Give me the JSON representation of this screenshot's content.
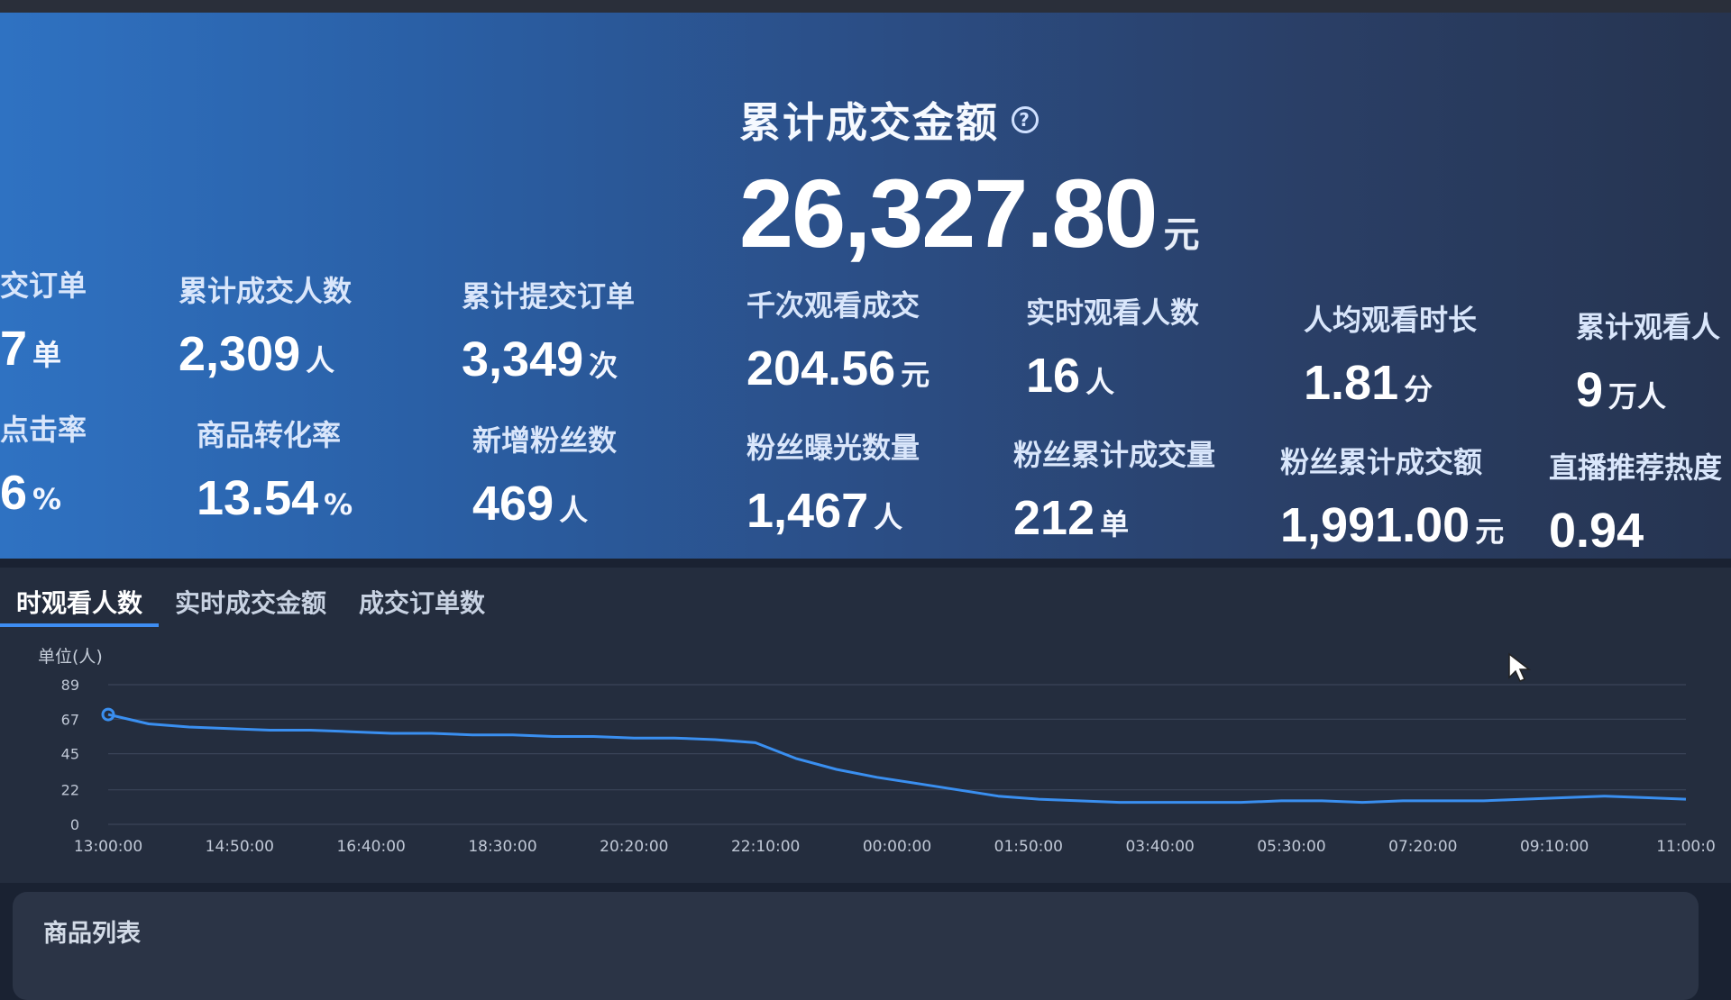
{
  "headline": {
    "label": "累计成交金额",
    "value": "26,327.80",
    "unit": "元"
  },
  "metrics_row1": [
    {
      "label": "交订单",
      "value": "7",
      "unit": "单"
    },
    {
      "label": "累计成交人数",
      "value": "2,309",
      "unit": "人"
    },
    {
      "label": "累计提交订单",
      "value": "3,349",
      "unit": "次"
    },
    {
      "label": "千次观看成交",
      "value": "204.56",
      "unit": "元"
    },
    {
      "label": "实时观看人数",
      "value": "16",
      "unit": "人"
    },
    {
      "label": "人均观看时长",
      "value": "1.81",
      "unit": "分"
    },
    {
      "label": "累计观看人",
      "value": "9",
      "unit": "万人"
    }
  ],
  "metrics_row2": [
    {
      "label": "点击率",
      "value": "6",
      "unit": "%"
    },
    {
      "label": "商品转化率",
      "value": "13.54",
      "unit": "%"
    },
    {
      "label": "新增粉丝数",
      "value": "469",
      "unit": "人"
    },
    {
      "label": "粉丝曝光数量",
      "value": "1,467",
      "unit": "人"
    },
    {
      "label": "粉丝累计成交量",
      "value": "212",
      "unit": "单"
    },
    {
      "label": "粉丝累计成交额",
      "value": "1,991.00",
      "unit": "元"
    },
    {
      "label": "直播推荐热度",
      "value": "0.94",
      "unit": ""
    }
  ],
  "tabs": [
    "时观看人数",
    "实时成交金额",
    "成交订单数"
  ],
  "chart_unit": "单位(人)",
  "chart_data": {
    "type": "line",
    "ylabel": "单位(人)",
    "yticks": [
      0,
      22,
      45,
      67,
      89
    ],
    "ylim": [
      0,
      89
    ],
    "xticks": [
      "13:00:00",
      "14:50:00",
      "16:40:00",
      "18:30:00",
      "20:20:00",
      "22:10:00",
      "00:00:00",
      "01:50:00",
      "03:40:00",
      "05:30:00",
      "07:20:00",
      "09:10:00",
      "11:00:0"
    ],
    "series": [
      {
        "values": [
          70,
          64,
          62,
          61,
          60,
          60,
          59,
          58,
          58,
          57,
          57,
          56,
          56,
          55,
          55,
          54,
          52,
          42,
          35,
          30,
          26,
          22,
          18,
          16,
          15,
          14,
          14,
          14,
          14,
          15,
          15,
          14,
          15,
          15,
          15,
          16,
          17,
          18,
          17,
          16
        ]
      }
    ],
    "grid": true,
    "color": "#3a8ff0"
  },
  "product_list_title": "商品列表"
}
